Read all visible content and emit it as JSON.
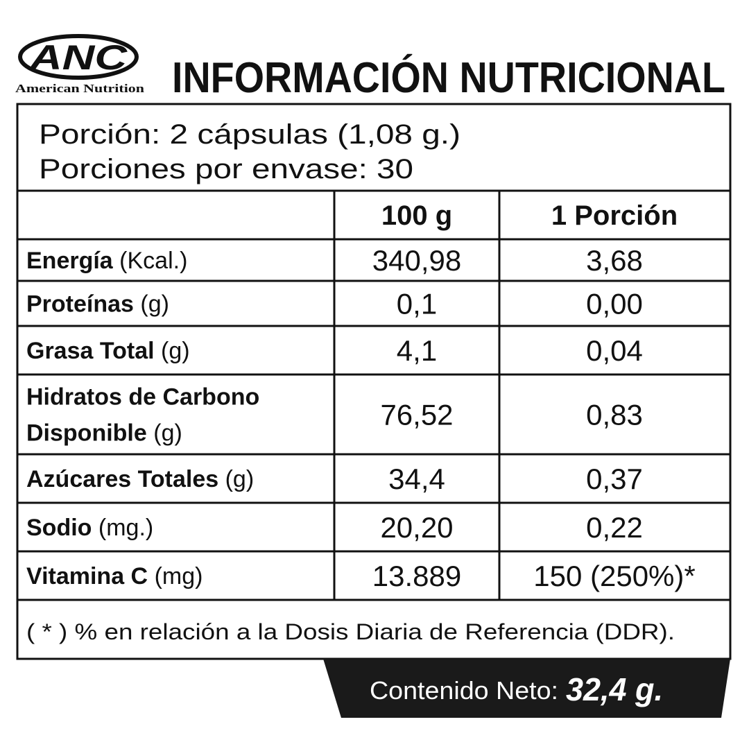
{
  "logo": {
    "mark": "ANC",
    "name": "American Nutrition"
  },
  "title": "INFORMACIÓN NUTRICIONAL",
  "serving": {
    "size": "Porción: 2 cápsulas (1,08 g.)",
    "per_container": "Porciones por envase: 30"
  },
  "table": {
    "headers": [
      "100 g",
      "1 Porción"
    ],
    "rows": [
      {
        "name_lines": [
          "Energía"
        ],
        "unit": "(Kcal.)",
        "values": [
          "340,98",
          "3,68"
        ]
      },
      {
        "name_lines": [
          "Proteínas"
        ],
        "unit": "(g)",
        "values": [
          "0,1",
          "0,00"
        ]
      },
      {
        "name_lines": [
          "Grasa Total"
        ],
        "unit": "(g)",
        "values": [
          "4,1",
          "0,04"
        ]
      },
      {
        "name_lines": [
          "Hidratos de Carbono",
          "Disponible"
        ],
        "unit": "(g)",
        "values": [
          "76,52",
          "0,83"
        ]
      },
      {
        "name_lines": [
          "Azúcares Totales"
        ],
        "unit": "(g)",
        "values": [
          "34,4",
          "0,37"
        ]
      },
      {
        "name_lines": [
          "Sodio"
        ],
        "unit": "(mg.)",
        "values": [
          "20,20",
          "0,22"
        ]
      },
      {
        "name_lines": [
          "Vitamina C"
        ],
        "unit": "(mg)",
        "values": [
          "13.889",
          "150 (250%)*"
        ]
      }
    ]
  },
  "footnote": "( * ) % en relación a la Dosis Diaria de Referencia (DDR).",
  "net_content": {
    "label": "Contenido Neto:",
    "value": "32,4 g."
  }
}
